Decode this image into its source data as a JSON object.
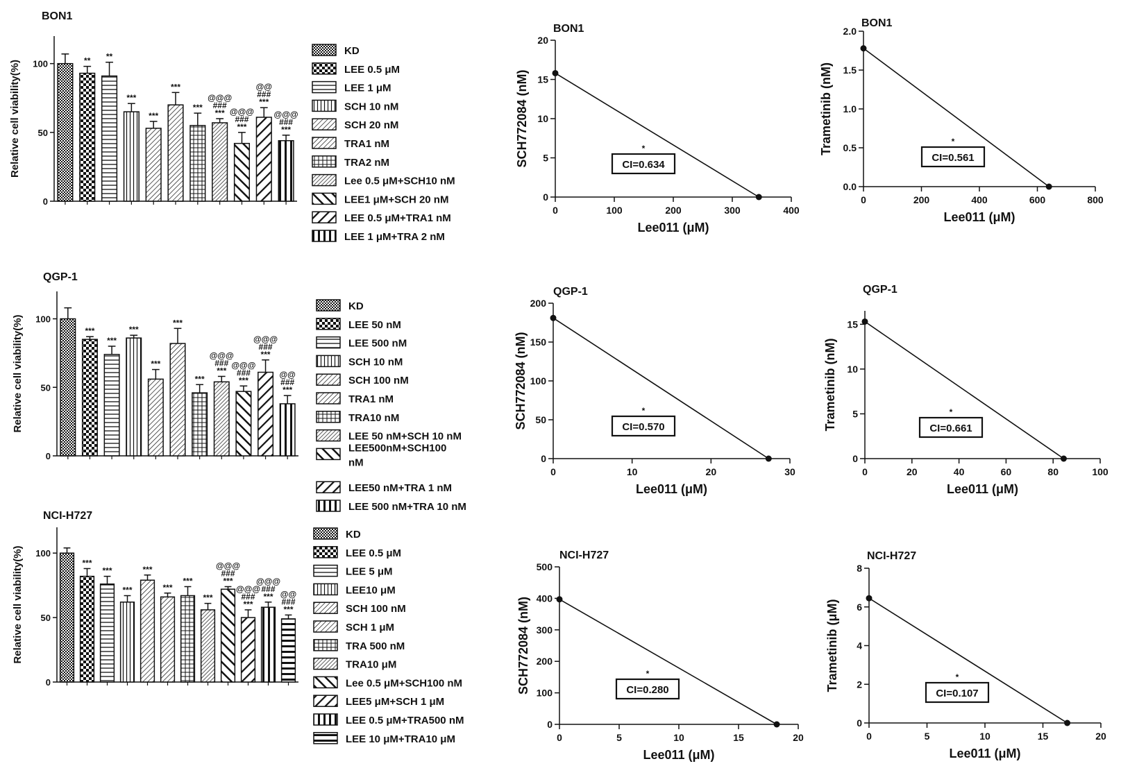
{
  "chart_data": [
    {
      "id": "bar-bon1",
      "type": "bar",
      "title": "BON1",
      "ylabel": "Relative cell viability(%)",
      "ylim": [
        0,
        120
      ],
      "yticks": [
        0,
        50,
        100
      ],
      "categories": [
        "KD",
        "LEE 0.5 μM",
        "LEE 1 μM",
        "SCH 10 nM",
        "SCH 20 nM",
        "TRA1 nM",
        "TRA2 nM",
        "Lee 0.5 μM+SCH10 nM",
        "LEE1 μM+SCH 20 nM",
        "LEE 0.5 μM+TRA1 nM",
        "LEE 1 μM+TRA 2 nM"
      ],
      "values": [
        100,
        93,
        91,
        65,
        53,
        70,
        55,
        57,
        42,
        61,
        44
      ],
      "errors": [
        7,
        5,
        10,
        6,
        5,
        9,
        9,
        3,
        8,
        7,
        4
      ],
      "annotations": [
        [],
        [
          "**"
        ],
        [
          "**"
        ],
        [
          "***"
        ],
        [
          "***"
        ],
        [
          "***"
        ],
        [
          "***"
        ],
        [
          "@@@",
          "###",
          "***"
        ],
        [
          "@@@",
          "###",
          "***"
        ],
        [
          "@@",
          "###",
          "***"
        ],
        [
          "@@@",
          "###",
          "***"
        ]
      ],
      "patterns": [
        "dense",
        "checker",
        "hlines",
        "vlines",
        "diag-fine",
        "diag-fine",
        "grid",
        "dots",
        "back-heavy",
        "diag-heavy",
        "vbars"
      ]
    },
    {
      "id": "bar-qgp1",
      "type": "bar",
      "title": "QGP-1",
      "ylabel": "Relative cell viability(%)",
      "ylim": [
        0,
        120
      ],
      "yticks": [
        0,
        50,
        100
      ],
      "categories": [
        "KD",
        "LEE 50 nM",
        "LEE 500 nM",
        "SCH 10 nM",
        "SCH 100 nM",
        "TRA1 nM",
        "TRA10 nM",
        "LEE 50 nM+SCH 10 nM",
        "LEE500nM+SCH100 nM",
        "LEE50 nM+TRA 1 nM",
        "LEE 500 nM+TRA 10 nM"
      ],
      "values": [
        100,
        85,
        74,
        86,
        56,
        82,
        46,
        54,
        47,
        61,
        38
      ],
      "errors": [
        8,
        2,
        6,
        2,
        7,
        11,
        6,
        4,
        4,
        9,
        6
      ],
      "annotations": [
        [],
        [
          "***"
        ],
        [
          "***"
        ],
        [
          "***"
        ],
        [
          "***"
        ],
        [
          "***"
        ],
        [
          "***"
        ],
        [
          "@@@",
          "###",
          "***"
        ],
        [
          "@@@",
          "###",
          "***"
        ],
        [
          "@@@",
          "###",
          "***"
        ],
        [
          "@@",
          "###",
          "***"
        ]
      ],
      "patterns": [
        "dense",
        "checker",
        "hlines",
        "vlines",
        "diag-fine",
        "diag-fine",
        "grid",
        "dots",
        "back-heavy",
        "diag-heavy",
        "vbars"
      ]
    },
    {
      "id": "bar-nci",
      "type": "bar",
      "title": "NCI-H727",
      "ylabel": "Relative cell viability(%)",
      "ylim": [
        0,
        120
      ],
      "yticks": [
        0,
        50,
        100
      ],
      "categories": [
        "KD",
        "LEE 0.5 μM",
        " LEE 5 μM",
        "LEE10 μM",
        "SCH 100  nM",
        "SCH 1  μM",
        "TRA 500 nM",
        "TRA10 μM",
        "Lee 0.5 μM+SCH100 nM",
        "LEE5 μM+SCH 1  μM",
        "LEE 0.5 μM+TRA500 nM",
        "LEE 10 μM+TRA10 μM"
      ],
      "values": [
        100,
        82,
        76,
        62,
        79,
        66,
        67,
        56,
        72,
        50,
        58,
        49
      ],
      "errors": [
        4,
        6,
        6,
        5,
        4,
        3,
        7,
        5,
        2,
        6,
        4,
        3
      ],
      "annotations": [
        [],
        [
          "***"
        ],
        [
          "***"
        ],
        [
          "***"
        ],
        [
          "***"
        ],
        [
          "***"
        ],
        [
          "***"
        ],
        [
          "***"
        ],
        [
          "@@@",
          "###",
          "***"
        ],
        [
          "@@@",
          "###",
          "***"
        ],
        [
          "@@@",
          "###",
          "***"
        ],
        [
          "@@",
          "###",
          "***"
        ]
      ],
      "patterns": [
        "dense",
        "checker",
        "hlines",
        "vlines",
        "diag-fine",
        "diag-fine",
        "grid",
        "dots",
        "back-heavy",
        "diag-heavy",
        "vbars",
        "hbars"
      ]
    },
    {
      "id": "iso-bon1-sch",
      "type": "line",
      "title": "BON1",
      "xlabel": "Lee011 (μM)",
      "ylabel": "SCH772084 (nM)",
      "xlim": [
        0,
        400
      ],
      "ylim": [
        0,
        20
      ],
      "xticks": [
        0,
        100,
        200,
        300,
        400
      ],
      "yticks": [
        0,
        5,
        10,
        15,
        20
      ],
      "x": [
        0,
        345
      ],
      "y": [
        15.8,
        0
      ],
      "star": "*",
      "ci_label": "CI=0.634"
    },
    {
      "id": "iso-bon1-tra",
      "type": "line",
      "title": "BON1",
      "xlabel": "Lee011 (μM)",
      "ylabel": "Trametinib (nM)",
      "xlim": [
        0,
        800
      ],
      "ylim": [
        0,
        2.0
      ],
      "xticks": [
        0,
        200,
        400,
        600,
        800
      ],
      "yticks": [
        "0.0",
        "0.5",
        "1.0",
        "1.5",
        "2.0"
      ],
      "x": [
        0,
        640
      ],
      "y": [
        1.78,
        0
      ],
      "star": "*",
      "ci_label": "CI=0.561"
    },
    {
      "id": "iso-qgp1-sch",
      "type": "line",
      "title": "QGP-1",
      "xlabel": "Lee011 (μM)",
      "ylabel": "SCH772084 (nM)",
      "xlim": [
        0,
        30
      ],
      "ylim": [
        0,
        200
      ],
      "xticks": [
        0,
        10,
        20,
        30
      ],
      "yticks": [
        0,
        50,
        100,
        150,
        200
      ],
      "x": [
        0,
        27.3
      ],
      "y": [
        181,
        0
      ],
      "star": "*",
      "ci_label": "CI=0.570"
    },
    {
      "id": "iso-qgp1-tra",
      "type": "line",
      "title": "QGP-1",
      "xlabel": "Lee011 (μM)",
      "ylabel": "Trametinib (nM)",
      "xlim": [
        0,
        100
      ],
      "ylim": [
        0,
        16.5
      ],
      "xticks": [
        0,
        20,
        40,
        60,
        80,
        100
      ],
      "yticks": [
        0,
        5,
        10,
        15
      ],
      "x": [
        0,
        84.5
      ],
      "y": [
        15.3,
        0
      ],
      "star": "*",
      "ci_label": "CI=0.661"
    },
    {
      "id": "iso-nci-sch",
      "type": "line",
      "title": "NCI-H727",
      "xlabel": "Lee011 (μM)",
      "ylabel": "SCH772084 (nM)",
      "xlim": [
        0,
        20
      ],
      "ylim": [
        0,
        500
      ],
      "xticks": [
        0,
        5,
        10,
        15,
        20
      ],
      "yticks": [
        0,
        100,
        200,
        300,
        400,
        500
      ],
      "x": [
        0,
        18.2
      ],
      "y": [
        397,
        0
      ],
      "star": "*",
      "ci_label": "CI=0.280"
    },
    {
      "id": "iso-nci-tra",
      "type": "line",
      "title": "NCI-H727",
      "xlabel": "Lee011 (μM)",
      "ylabel": "Trametinib (μM)",
      "xlim": [
        0,
        20
      ],
      "ylim": [
        0,
        8
      ],
      "xticks": [
        0,
        5,
        10,
        15,
        20
      ],
      "yticks": [
        0,
        2,
        4,
        6,
        8
      ],
      "x": [
        0,
        17.1
      ],
      "y": [
        6.45,
        0
      ],
      "star": "*",
      "ci_label": "CI=0.107"
    }
  ]
}
